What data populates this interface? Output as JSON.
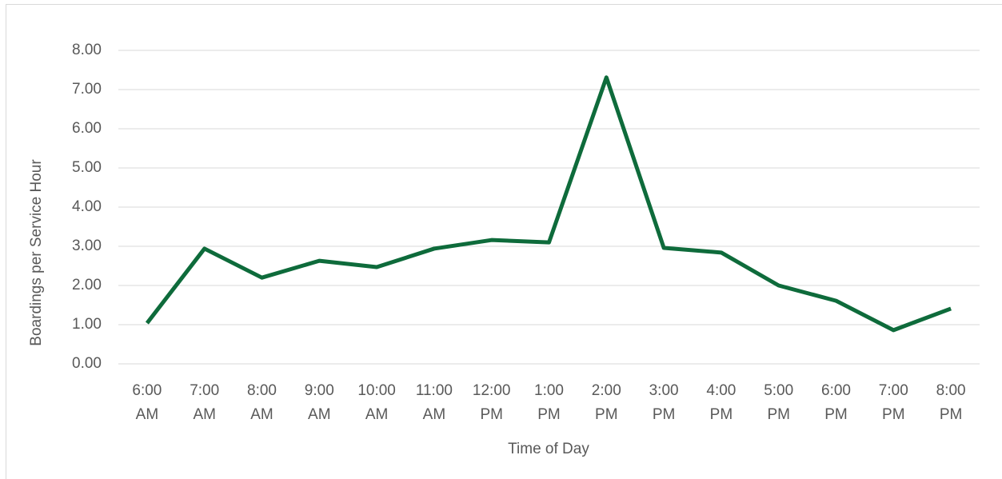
{
  "chart_data": {
    "type": "line",
    "xlabel": "Time of Day",
    "ylabel": "Boardings per Service  Hour",
    "categories": [
      "6:00 AM",
      "7:00 AM",
      "8:00 AM",
      "9:00 AM",
      "10:00 AM",
      "11:00 AM",
      "12:00 PM",
      "1:00 PM",
      "2:00 PM",
      "3:00 PM",
      "4:00 PM",
      "5:00 PM",
      "6:00 PM",
      "7:00 PM",
      "8:00 PM"
    ],
    "values": [
      1.04,
      2.94,
      2.2,
      2.63,
      2.47,
      2.94,
      3.16,
      3.1,
      7.31,
      2.96,
      2.84,
      2.0,
      1.61,
      0.86,
      1.41
    ],
    "color": "#0e6b3b",
    "ylim": [
      0,
      8
    ],
    "yticks": [
      {
        "value": 0,
        "label": "0.00"
      },
      {
        "value": 1,
        "label": "1.00"
      },
      {
        "value": 2,
        "label": "2.00"
      },
      {
        "value": 3,
        "label": "3.00"
      },
      {
        "value": 4,
        "label": "4.00"
      },
      {
        "value": 5,
        "label": "5.00"
      },
      {
        "value": 6,
        "label": "6.00"
      },
      {
        "value": 7,
        "label": "7.00"
      },
      {
        "value": 8,
        "label": "8.00"
      }
    ],
    "grid": true
  }
}
